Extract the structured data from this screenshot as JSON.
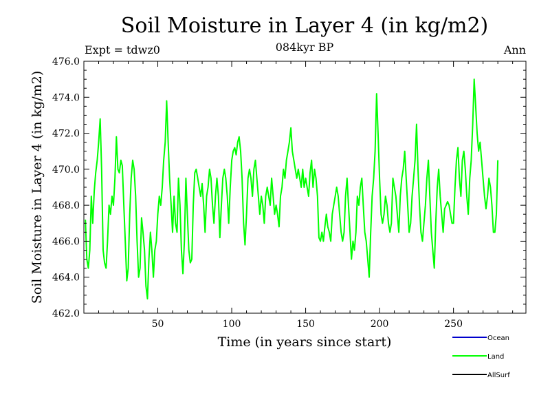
{
  "chart_data": {
    "type": "line",
    "title": "Soil Moisture in Layer 4 (in kg/m2)",
    "subtitle": "084kyr BP",
    "expt_label": "Expt = tdwz0",
    "season_label": "Ann",
    "xlabel": "Time (in years since start)",
    "ylabel": "Soil Moisture in Layer 4 (in kg/m2)",
    "xlim": [
      0,
      299
    ],
    "ylim": [
      462.0,
      476.0
    ],
    "x_ticks": [
      50,
      100,
      150,
      200,
      250
    ],
    "x_tick_labels": [
      "50",
      "100",
      "150",
      "200",
      "250"
    ],
    "y_ticks": [
      462,
      464,
      466,
      468,
      470,
      472,
      474,
      476
    ],
    "y_tick_labels": [
      "462.0",
      "464.0",
      "466.0",
      "468.0",
      "470.0",
      "472.0",
      "474.0",
      "476.0"
    ],
    "grid": false,
    "legend_position": "bottom-right",
    "legend": [
      {
        "name": "Ocean",
        "color": "#0000cc"
      },
      {
        "name": "Land",
        "color": "#00ff00"
      },
      {
        "name": "AllSurf",
        "color": "#000000"
      }
    ],
    "series": [
      {
        "name": "Land",
        "color": "#00ff00",
        "x_start": 1,
        "x_step": 1,
        "values": [
          467.2,
          465.0,
          464.5,
          465.5,
          468.5,
          467.0,
          468.8,
          469.8,
          470.5,
          471.5,
          472.8,
          470.0,
          465.5,
          464.8,
          464.5,
          466.0,
          468.0,
          467.5,
          468.5,
          468.0,
          469.5,
          471.8,
          470.0,
          469.8,
          470.5,
          470.2,
          468.0,
          466.0,
          463.8,
          464.5,
          467.5,
          469.5,
          470.5,
          470.0,
          468.5,
          466.0,
          464.0,
          464.5,
          467.3,
          466.5,
          465.5,
          463.5,
          462.8,
          465.0,
          466.5,
          465.5,
          464.0,
          465.5,
          466.0,
          467.5,
          468.5,
          468.0,
          469.0,
          470.5,
          471.5,
          473.8,
          471.5,
          469.5,
          468.0,
          466.5,
          468.5,
          467.0,
          466.5,
          469.5,
          468.0,
          465.5,
          464.2,
          466.0,
          469.5,
          467.5,
          465.5,
          464.8,
          465.0,
          468.0,
          469.8,
          470.0,
          469.5,
          469.0,
          468.5,
          469.2,
          468.0,
          466.5,
          468.5,
          469.0,
          470.0,
          469.5,
          468.0,
          467.0,
          468.5,
          469.5,
          468.5,
          466.2,
          468.0,
          469.5,
          470.0,
          469.5,
          468.5,
          467.0,
          469.0,
          470.5,
          471.0,
          471.2,
          470.8,
          471.5,
          471.8,
          471.0,
          469.5,
          467.0,
          465.8,
          467.5,
          469.5,
          470.0,
          469.5,
          468.5,
          470.0,
          470.5,
          469.5,
          468.5,
          467.5,
          468.5,
          468.0,
          467.0,
          468.5,
          469.0,
          468.5,
          468.0,
          469.5,
          468.5,
          467.5,
          468.0,
          467.5,
          466.8,
          468.5,
          469.0,
          470.0,
          469.5,
          470.5,
          471.0,
          471.5,
          472.3,
          471.0,
          470.5,
          470.0,
          469.5,
          470.0,
          469.5,
          469.0,
          470.0,
          469.0,
          469.5,
          469.0,
          468.5,
          469.8,
          470.5,
          469.0,
          470.0,
          469.5,
          468.5,
          466.2,
          466.0,
          466.5,
          466.0,
          466.8,
          467.5,
          466.8,
          466.5,
          466.0,
          467.5,
          468.0,
          468.5,
          469.0,
          468.5,
          467.5,
          466.5,
          466.0,
          466.5,
          468.5,
          469.5,
          468.0,
          466.5,
          465.0,
          466.0,
          465.5,
          466.5,
          468.5,
          468.0,
          469.0,
          469.5,
          468.0,
          466.5,
          466.0,
          465.0,
          464.0,
          466.5,
          468.5,
          469.5,
          471.0,
          474.2,
          472.0,
          469.5,
          467.5,
          467.0,
          467.5,
          468.5,
          468.0,
          467.0,
          466.5,
          467.0,
          469.5,
          469.0,
          468.5,
          467.5,
          466.5,
          468.5,
          469.5,
          470.0,
          471.0,
          469.5,
          468.0,
          466.5,
          467.0,
          468.5,
          469.5,
          470.5,
          472.5,
          470.0,
          468.0,
          466.5,
          466.0,
          467.0,
          468.0,
          469.5,
          470.5,
          468.5,
          466.5,
          465.5,
          464.5,
          467.0,
          469.0,
          470.0,
          468.5,
          467.5,
          466.5,
          467.8,
          468.0,
          468.2,
          468.0,
          467.5,
          467.0,
          467.0,
          469.0,
          470.5,
          471.2,
          469.5,
          468.5,
          470.5,
          471.0,
          470.0,
          468.5,
          467.5,
          469.5,
          470.5,
          472.5,
          475.0,
          473.5,
          472.0,
          471.0,
          471.5,
          470.5,
          469.5,
          468.5,
          467.8,
          468.5,
          469.5,
          469.0,
          468.0,
          466.5,
          466.5,
          467.5,
          470.5
        ]
      }
    ]
  }
}
